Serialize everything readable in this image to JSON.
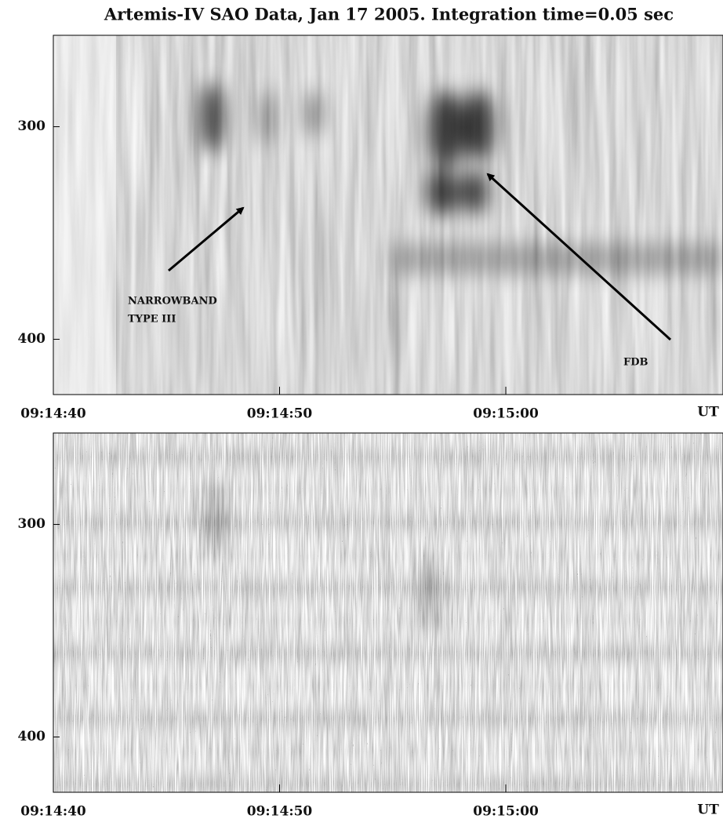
{
  "chart_data": [
    {
      "type": "spectrogram",
      "title": "Artemis-IV SAO Data, Jan 17 2005. Integration time=0.05 sec",
      "xlim": [
        33280,
        33309.6
      ],
      "xticks": [
        {
          "value": 33280,
          "label": "09:14:40"
        },
        {
          "value": 33290,
          "label": "09:14:50"
        },
        {
          "value": 33300,
          "label": "09:15:00"
        }
      ],
      "x_label": "UT",
      "ylim": [
        257,
        426
      ],
      "yticks": [
        300,
        400
      ],
      "annotations": [
        "NARROWBAND",
        "TYPE III",
        "FDB"
      ]
    },
    {
      "type": "spectrogram-differential",
      "xlim": [
        33280,
        33309.6
      ],
      "xticks": [
        {
          "value": 33280,
          "label": "09:14:40"
        },
        {
          "value": 33290,
          "label": "09:14:50"
        },
        {
          "value": 33300,
          "label": "09:15:00"
        }
      ],
      "x_label": "UT",
      "ylim": [
        257,
        426
      ],
      "yticks": [
        300,
        400
      ]
    }
  ]
}
